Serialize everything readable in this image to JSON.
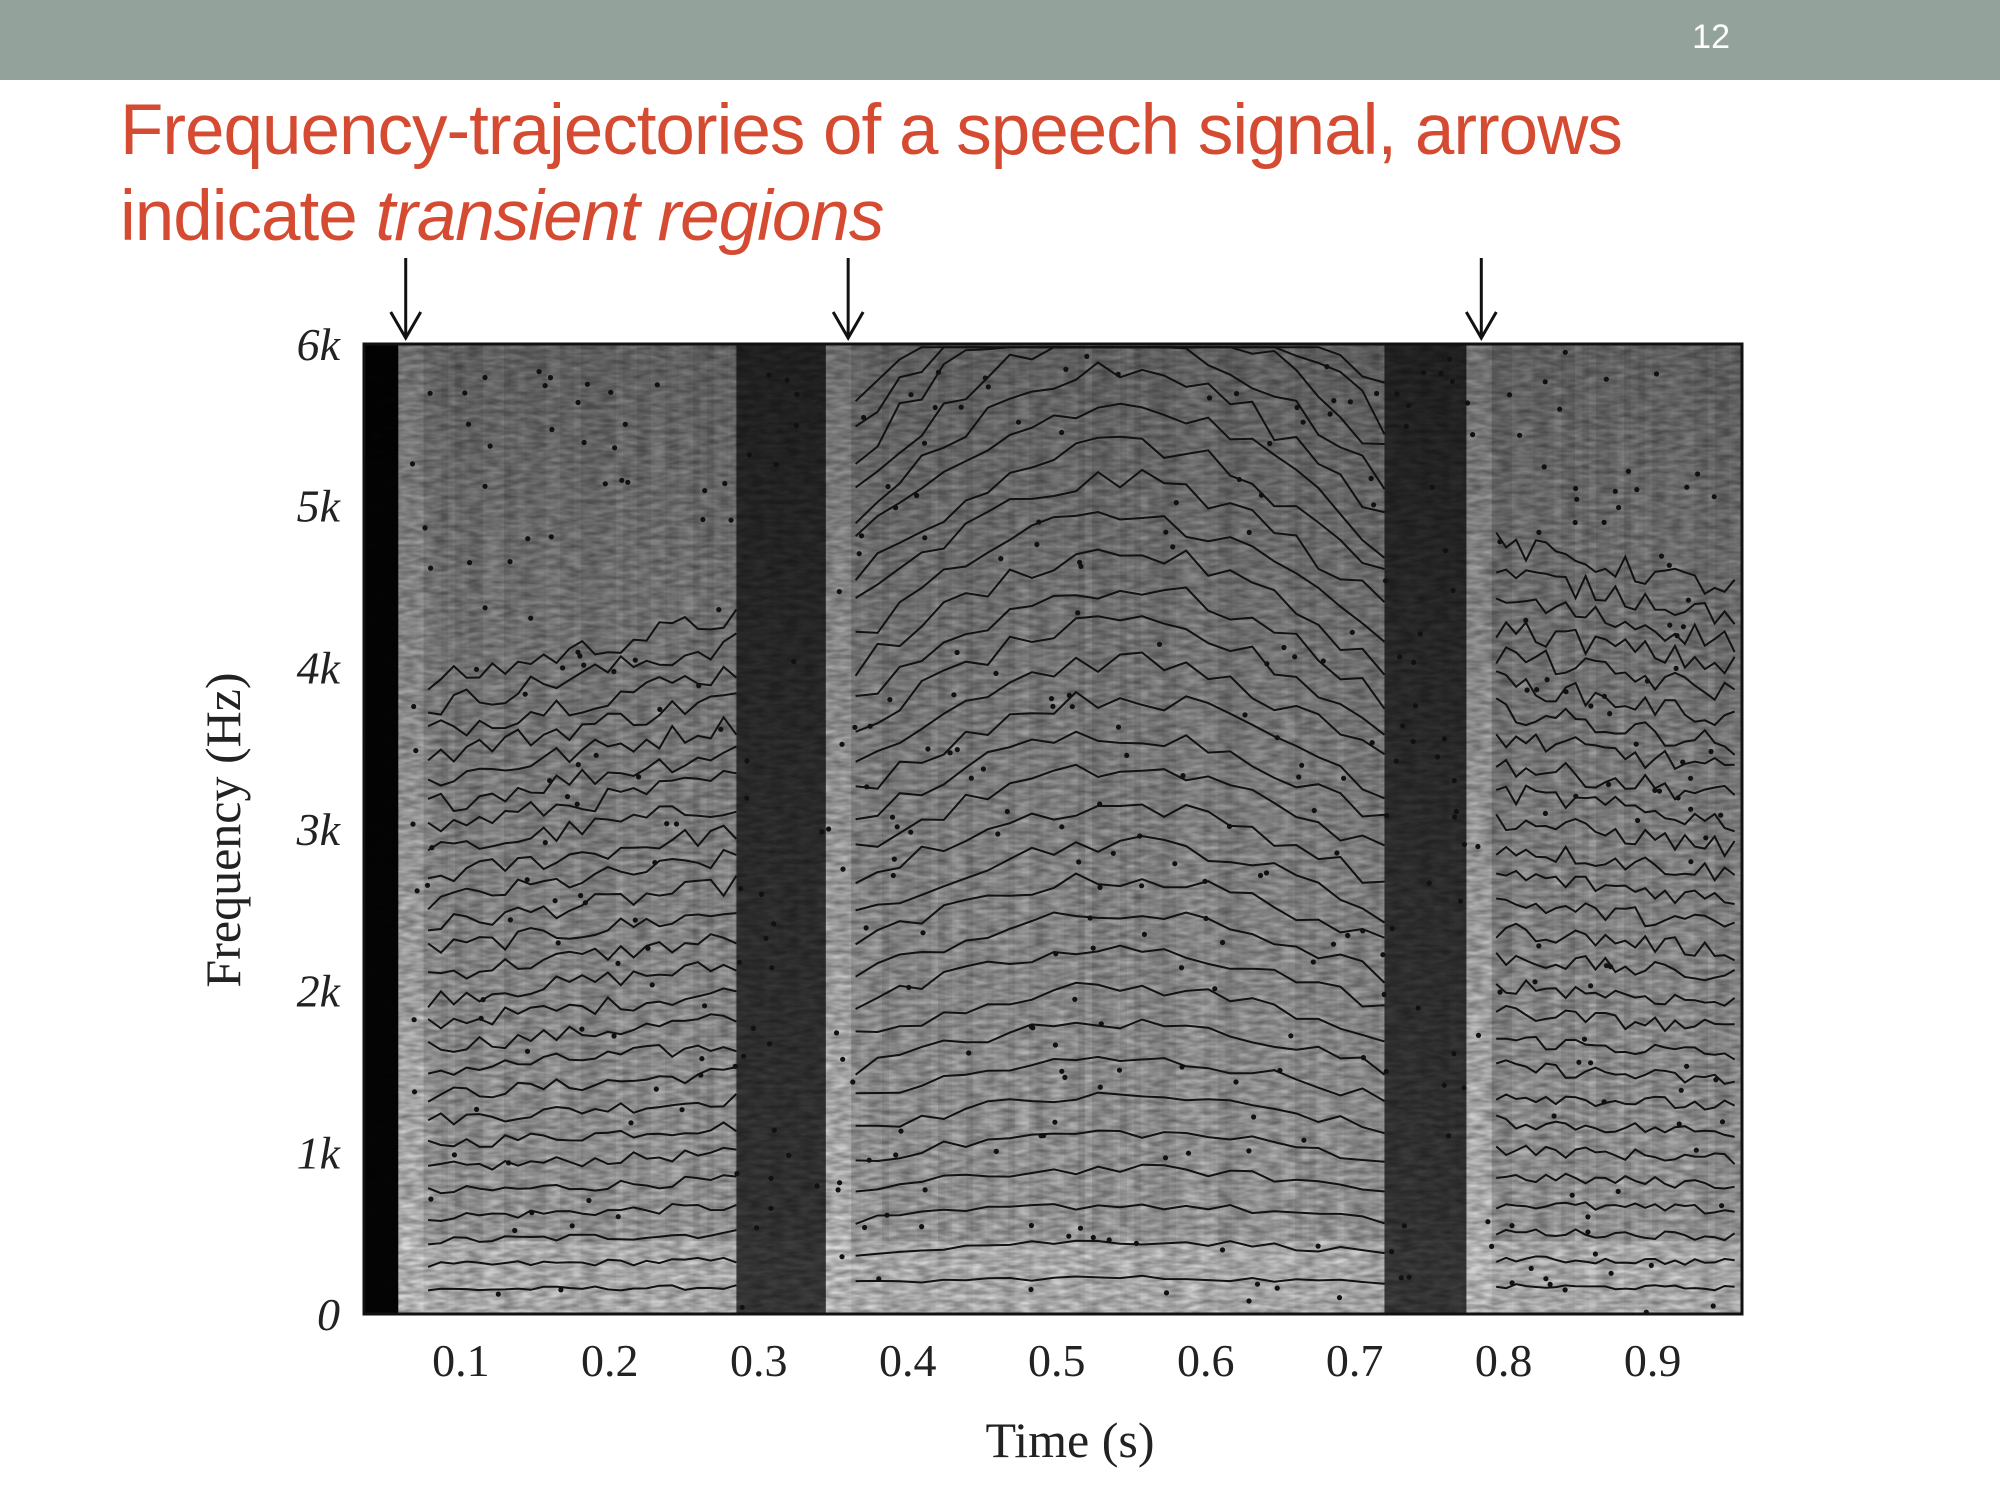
{
  "header": {
    "slide_number": "12",
    "bar_color": "#93a29a"
  },
  "title": {
    "main": "Frequency-trajectories of a speech signal, arrows indicate ",
    "emphasis": "transient regions",
    "color": "#d54b32"
  },
  "chart_data": {
    "type": "heatmap",
    "xlabel": "Time (s)",
    "ylabel": "Frequency (Hz)",
    "xlim": [
      0.035,
      0.96
    ],
    "ylim": [
      0,
      6000
    ],
    "x_ticks": [
      {
        "value": 0.1,
        "label": "0.1"
      },
      {
        "value": 0.2,
        "label": "0.2"
      },
      {
        "value": 0.3,
        "label": "0.3"
      },
      {
        "value": 0.4,
        "label": "0.4"
      },
      {
        "value": 0.5,
        "label": "0.5"
      },
      {
        "value": 0.6,
        "label": "0.6"
      },
      {
        "value": 0.7,
        "label": "0.7"
      },
      {
        "value": 0.8,
        "label": "0.8"
      },
      {
        "value": 0.9,
        "label": "0.9"
      }
    ],
    "y_ticks": [
      {
        "value": 0,
        "label": "0"
      },
      {
        "value": 1000,
        "label": "1k"
      },
      {
        "value": 2000,
        "label": "2k"
      },
      {
        "value": 3000,
        "label": "3k"
      },
      {
        "value": 4000,
        "label": "4k"
      },
      {
        "value": 5000,
        "label": "5k"
      },
      {
        "value": 6000,
        "label": "6k"
      }
    ],
    "transient_arrows_time_s": [
      0.063,
      0.36,
      0.785
    ],
    "dark_bands_time_s": [
      [
        0.035,
        0.058
      ],
      [
        0.285,
        0.345
      ],
      [
        0.72,
        0.775
      ]
    ],
    "colormap": "grayscale"
  }
}
